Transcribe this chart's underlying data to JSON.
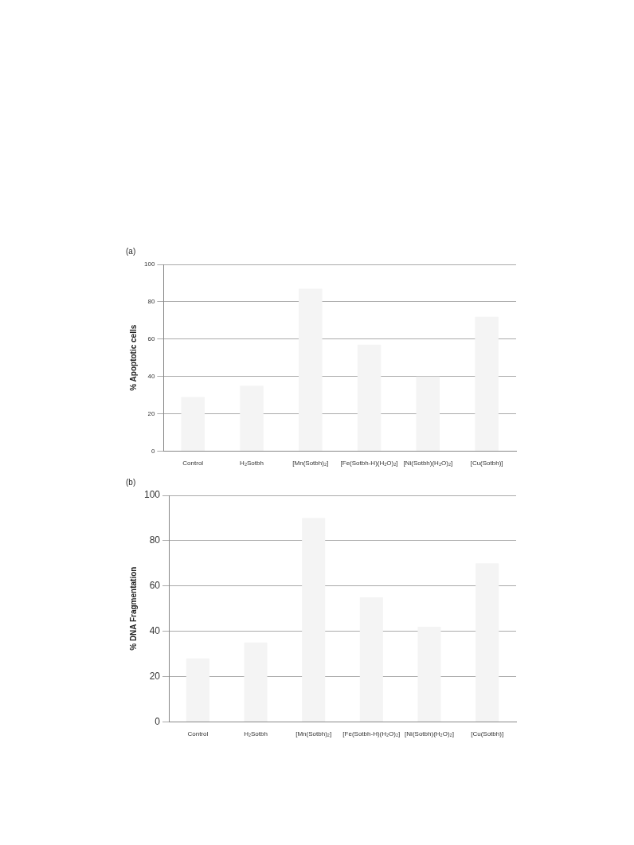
{
  "chart_data": [
    {
      "type": "bar",
      "title": "(a)",
      "ylabel": "% Apoptotic cells",
      "categories": [
        "Control",
        "H₂Sotbh",
        "[Mn(Sotbh)₂]",
        "[Fe(Sotbh-H)(H₂O)₂]",
        "[Ni(Sotbh)(H₂O)₂]",
        "[Cu(Sotbh)]"
      ],
      "values": [
        29,
        35,
        87,
        57,
        40,
        72
      ],
      "color": "#f4f4f4",
      "ylim": [
        0,
        100
      ],
      "yticks": [
        0,
        20,
        40,
        60,
        80,
        100
      ],
      "grid": "y"
    },
    {
      "type": "bar",
      "title": "(b)",
      "ylabel": "% DNA Fragmentation",
      "categories": [
        "Control",
        "H₂Sotbh",
        "[Mn(Sotbh)₂]",
        "[Fe(Sotbh-H)(H₂O)₂]",
        "[Ni(Sotbh)(H₂O)₂]",
        "[Cu(Sotbh)]"
      ],
      "values": [
        28,
        35,
        90,
        55,
        42,
        70
      ],
      "color": "#f4f4f4",
      "ylim": [
        0,
        100
      ],
      "yticks": [
        0,
        20,
        40,
        60,
        80,
        100
      ],
      "grid": "y"
    }
  ]
}
